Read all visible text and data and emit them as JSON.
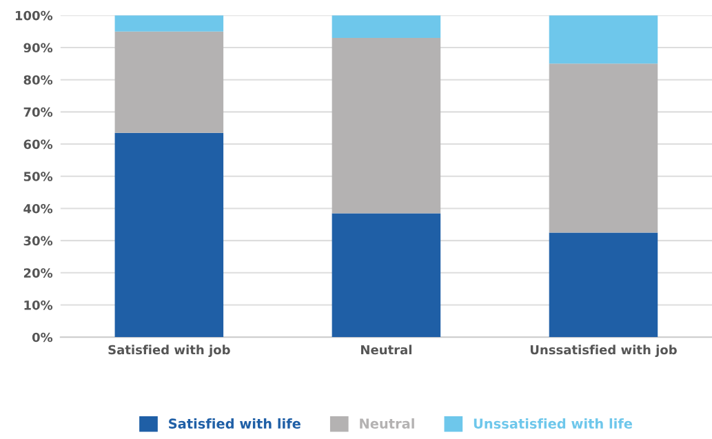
{
  "chart_data": {
    "type": "bar",
    "stacked": true,
    "categories": [
      "Satisfied with job",
      "Neutral",
      "Unssatisfied with job"
    ],
    "series": [
      {
        "name": "Satisfied with life",
        "color": "#1f5fa6",
        "values": [
          63.5,
          38.5,
          32.5
        ]
      },
      {
        "name": "Neutral",
        "color": "#b4b2b2",
        "values": [
          31.5,
          54.5,
          52.5
        ]
      },
      {
        "name": "Unssatisfied with life",
        "color": "#6ec7eb",
        "values": [
          5,
          7,
          15
        ]
      }
    ],
    "ylim": [
      0,
      100
    ],
    "yticks": [
      {
        "value": 0,
        "label": "0%"
      },
      {
        "value": 10,
        "label": "10%"
      },
      {
        "value": 20,
        "label": "20%"
      },
      {
        "value": 30,
        "label": "30%"
      },
      {
        "value": 40,
        "label": "40%"
      },
      {
        "value": 50,
        "label": "50%"
      },
      {
        "value": 60,
        "label": "60%"
      },
      {
        "value": 70,
        "label": "70%"
      },
      {
        "value": 80,
        "label": "80%"
      },
      {
        "value": 90,
        "label": "90%"
      },
      {
        "value": 100,
        "label": "100%"
      }
    ],
    "grid": "y",
    "legend": "bottom"
  }
}
